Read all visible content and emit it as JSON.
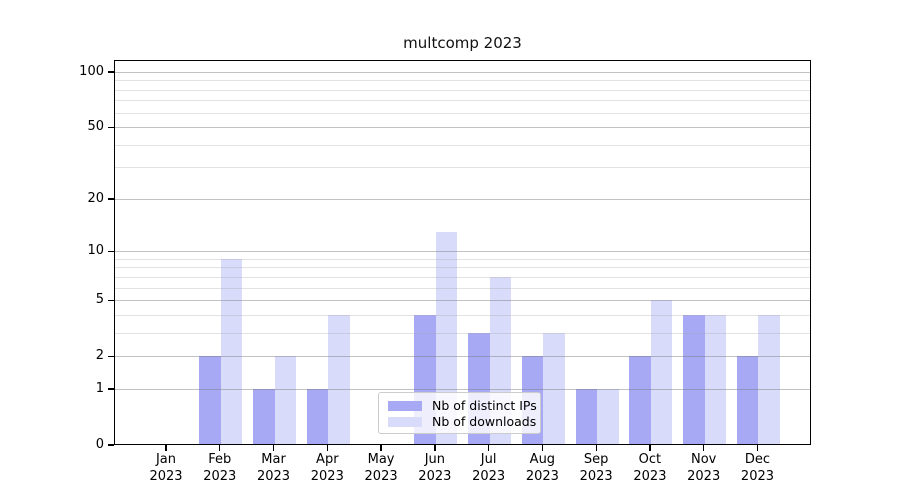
{
  "chart_data": {
    "type": "bar",
    "title": "multcomp 2023",
    "yscale": "symlog (y position proportional to log10(1+value))",
    "ylim": [
      0,
      116
    ],
    "grid": true,
    "yticks": [
      0,
      1,
      2,
      5,
      10,
      20,
      50,
      100
    ],
    "categories": [
      "Jan 2023",
      "Feb 2023",
      "Mar 2023",
      "Apr 2023",
      "May 2023",
      "Jun 2023",
      "Jul 2023",
      "Aug 2023",
      "Sep 2023",
      "Oct 2023",
      "Nov 2023",
      "Dec 2023"
    ],
    "series": [
      {
        "key": "distinct-ips",
        "name": "Nb of distinct IPs",
        "color": "#a8a9f5",
        "values": [
          0,
          2,
          1,
          1,
          0,
          4,
          3,
          2,
          1,
          2,
          4,
          2
        ]
      },
      {
        "key": "downloads",
        "name": "Nb of downloads",
        "color": "#d9dbfa",
        "values": [
          0,
          9,
          2,
          4,
          0,
          13,
          7,
          3,
          1,
          5,
          4,
          4
        ]
      }
    ],
    "legend_position": "lower center"
  },
  "colors": {
    "bar_distinct_ips": "#a8a9f5",
    "bar_downloads": "#d9dbfa",
    "spine": "#000000",
    "grid_major": "#c8c8c8",
    "grid_minor": "#e6e6e6",
    "legend_border": "#cccccc",
    "legend_background": "rgba(255,255,255,0.8)",
    "text": "#000000"
  }
}
